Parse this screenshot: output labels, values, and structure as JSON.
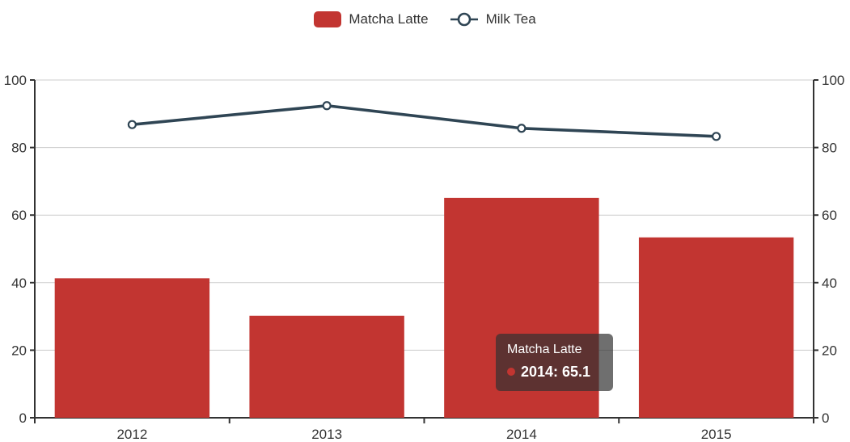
{
  "legend": {
    "items": [
      {
        "label": "Matcha Latte",
        "icon": "bar-swatch",
        "color": "#c23531"
      },
      {
        "label": "Milk Tea",
        "icon": "line-circle-swatch",
        "color": "#2f4554"
      }
    ]
  },
  "tooltip": {
    "title": "Matcha Latte",
    "value_label": "2014: 65.1",
    "marker_color": "#c23531",
    "background": "rgba(50,50,50,0.7)"
  },
  "colors": {
    "bar": "#c23531",
    "line": "#2f4554",
    "marker_fill": "#ffffff",
    "grid_line": "#cccccc",
    "axis_line": "#333333",
    "axis_label": "#333333"
  },
  "chart_data": {
    "type": "bar",
    "subtype": "bar+line combo",
    "categories": [
      "2012",
      "2013",
      "2014",
      "2015"
    ],
    "series": [
      {
        "name": "Matcha Latte",
        "type": "bar",
        "color": "#c23531",
        "values": [
          41.3,
          30.2,
          65.1,
          53.4
        ]
      },
      {
        "name": "Milk Tea",
        "type": "line",
        "color": "#2f4554",
        "marker": "circle",
        "values": [
          86.8,
          92.4,
          85.7,
          83.3
        ]
      }
    ],
    "xlabel": "",
    "ylabel": "",
    "y_axis_left": {
      "min": 0,
      "max": 100,
      "interval": 20,
      "ticks": [
        0,
        20,
        40,
        60,
        80,
        100
      ]
    },
    "y_axis_right": {
      "min": 0,
      "max": 100,
      "interval": 20,
      "ticks": [
        0,
        20,
        40,
        60,
        80,
        100
      ]
    },
    "grid": true,
    "legend_position": "top-center",
    "bar_width_fraction": 0.795
  }
}
